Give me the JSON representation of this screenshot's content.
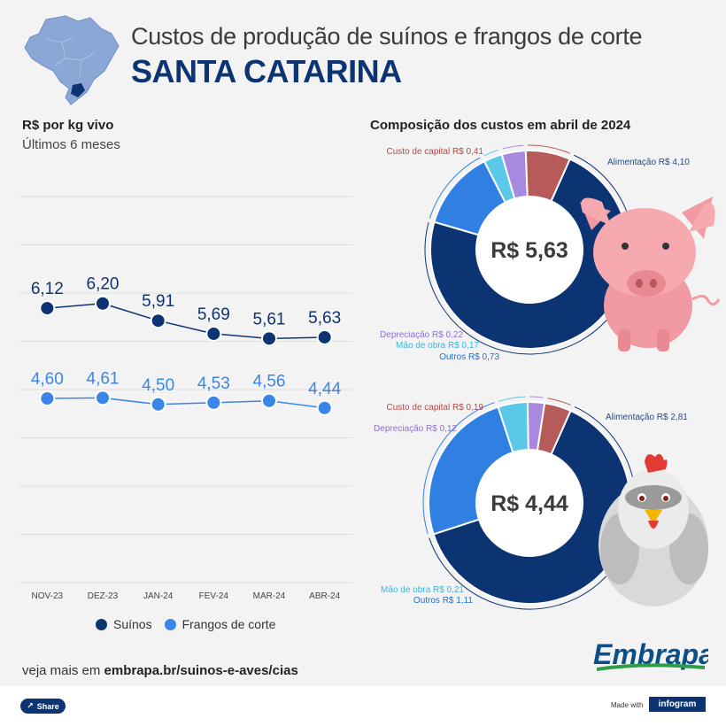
{
  "header": {
    "title": "Custos de produção de suínos e frangos de corte",
    "subtitle": "SANTA CATARINA"
  },
  "chart_data": [
    {
      "type": "line",
      "title": "R$ por kg vivo",
      "subtitle": "Últimos 6 meses",
      "categories": [
        "NOV-23",
        "DEZ-23",
        "JAN-24",
        "FEV-24",
        "MAR-24",
        "ABR-24"
      ],
      "series": [
        {
          "name": "Suínos",
          "color": "#0c3472",
          "values": [
            6.12,
            6.2,
            5.91,
            5.69,
            5.61,
            5.63
          ],
          "labels": [
            "6,12",
            "6,20",
            "5,91",
            "5,69",
            "5,61",
            "5,63"
          ]
        },
        {
          "name": "Frangos de corte",
          "color": "#3a86e6",
          "values": [
            4.6,
            4.61,
            4.5,
            4.53,
            4.56,
            4.44
          ],
          "labels": [
            "4,60",
            "4,61",
            "4,50",
            "4,53",
            "4,56",
            "4,44"
          ]
        }
      ],
      "ylim": [
        1.5,
        8.0
      ],
      "grid": true,
      "legend": "bottom"
    },
    {
      "type": "pie",
      "title": "Composição dos custos em abril de 2024",
      "center_label": "R$ 5,63",
      "slices": [
        {
          "name": "Alimentação",
          "label": "Alimentação R$ 4,10",
          "value": 4.1,
          "color": "#0c3472",
          "label_color": "#1c4a8c"
        },
        {
          "name": "Outros",
          "label": "Outros R$ 0,73",
          "value": 0.73,
          "color": "#2f80e2",
          "label_color": "#1e6fd0"
        },
        {
          "name": "Mão de obra",
          "label": "Mão de obra R$ 0,17",
          "value": 0.17,
          "color": "#5ac8e8",
          "label_color": "#38b5de"
        },
        {
          "name": "Depreciação",
          "label": "Depreciação R$ 0,22",
          "value": 0.22,
          "color": "#a78ae0",
          "label_color": "#8d6fd4"
        },
        {
          "name": "Custo de capital",
          "label": "Custo de capital R$ 0,41",
          "value": 0.41,
          "color": "#b65a5a",
          "label_color": "#b04848"
        }
      ]
    },
    {
      "type": "pie",
      "center_label": "R$ 4,44",
      "slices": [
        {
          "name": "Alimentação",
          "label": "Alimentação R$ 2,81",
          "value": 2.81,
          "color": "#0c3472",
          "label_color": "#1c4a8c"
        },
        {
          "name": "Outros",
          "label": "Outros R$ 1,11",
          "value": 1.11,
          "color": "#2f80e2",
          "label_color": "#1e6fd0"
        },
        {
          "name": "Mão de obra",
          "label": "Mão de obra R$ 0,21",
          "value": 0.21,
          "color": "#5ac8e8",
          "label_color": "#38b5de"
        },
        {
          "name": "Depreciação",
          "label": "Depreciação R$ 0,12",
          "value": 0.12,
          "color": "#a78ae0",
          "label_color": "#8d6fd4"
        },
        {
          "name": "Custo de capital",
          "label": "Custo de capital R$ 0,19",
          "value": 0.19,
          "color": "#b65a5a",
          "label_color": "#b04848"
        }
      ]
    }
  ],
  "footer": {
    "link_prefix": "veja mais em ",
    "link_text": "embrapa.br/suinos-e-aves/cias",
    "logo_text": "Embrapa",
    "share_label": "Share",
    "made_with": "Made with",
    "infogram": "infogram"
  },
  "icons": {
    "map": "brazil-map-icon",
    "pig": "pig-icon",
    "chicken": "chicken-icon",
    "share": "share-icon"
  }
}
